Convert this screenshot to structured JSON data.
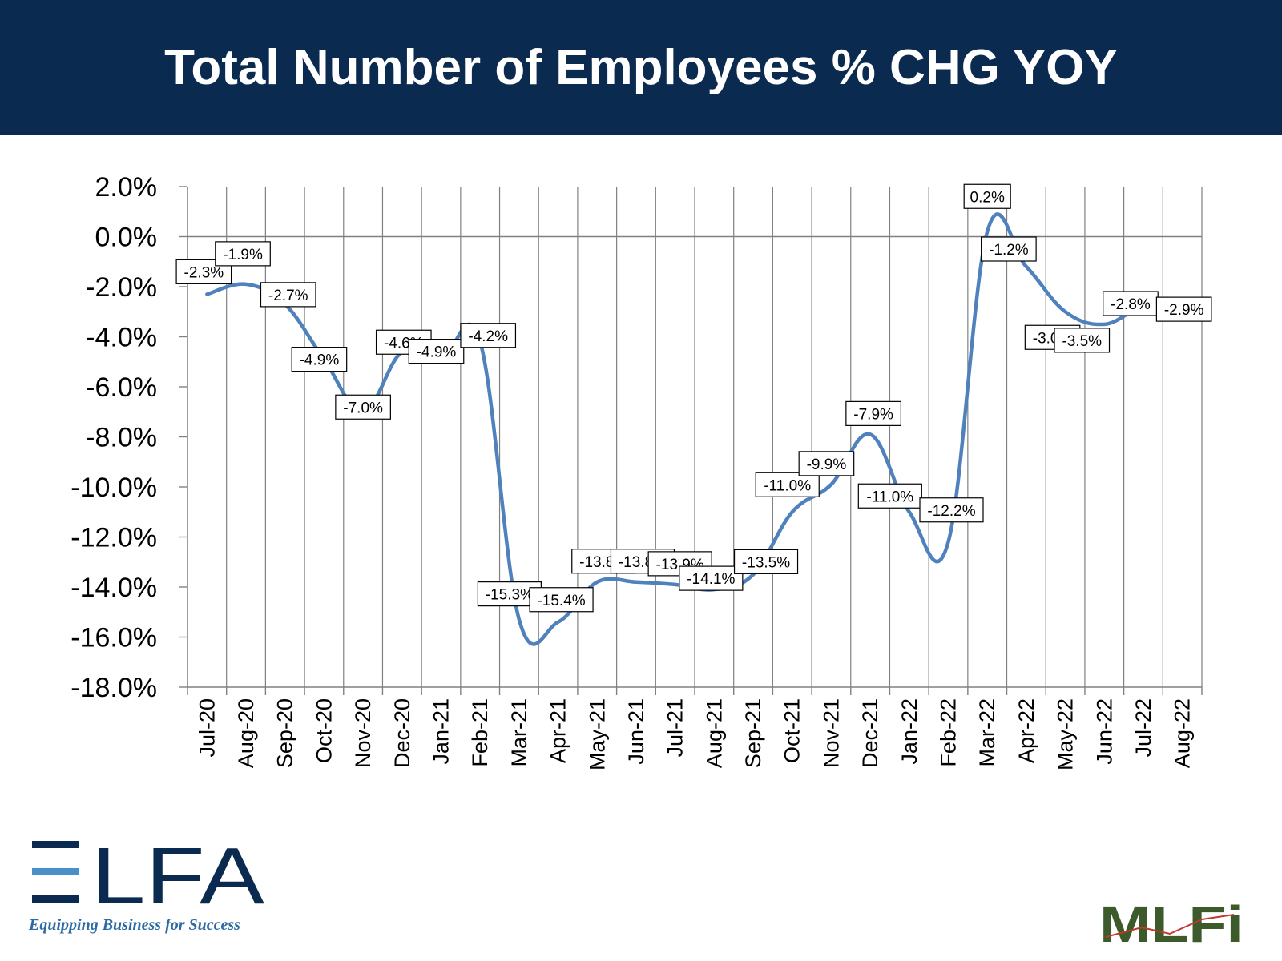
{
  "header": {
    "title": "Total Number of Employees % CHG YOY"
  },
  "logos": {
    "elfa": {
      "wordmark": "ELFA",
      "tagline": "Equipping Business for Success",
      "color": "#0b2a4f",
      "accent": "#4a90c8"
    },
    "mlfi": {
      "wordmark": "MLFi",
      "color": "#3d5a2a"
    }
  },
  "colors": {
    "header_bg": "#0b2a4f",
    "line": "#4f81bd",
    "grid": "#808080"
  },
  "chart_data": {
    "type": "line",
    "title": "",
    "xlabel": "",
    "ylabel": "",
    "ylim": [
      -18,
      2
    ],
    "ytick_step": 2,
    "y_format": "percent_1dp",
    "grid": "vertical-and-zero",
    "legend": "none",
    "categories": [
      "Jul-20",
      "Aug-20",
      "Sep-20",
      "Oct-20",
      "Nov-20",
      "Dec-20",
      "Jan-21",
      "Feb-21",
      "Mar-21",
      "Apr-21",
      "May-21",
      "Jun-21",
      "Jul-21",
      "Aug-21",
      "Sep-21",
      "Oct-21",
      "Nov-21",
      "Dec-21",
      "Jan-22",
      "Feb-22",
      "Mar-22",
      "Apr-22",
      "May-22",
      "Jun-22",
      "Jul-22",
      "Aug-22"
    ],
    "series": [
      {
        "values": [
          -2.3,
          -1.9,
          -2.7,
          -4.9,
          -7.0,
          -4.6,
          -4.9,
          -4.2,
          -15.3,
          -15.4,
          -13.8,
          -13.8,
          -13.9,
          -14.1,
          -13.5,
          -11.0,
          -9.9,
          -7.9,
          -11.0,
          -12.2,
          0.2,
          -1.2,
          -3.0,
          -3.5,
          -2.8,
          -2.9
        ],
        "data_labels": [
          "-2.3%",
          "-1.9%",
          "-2.7%",
          "-4.9%",
          "-7.0%",
          "-4.6%",
          "-4.9%",
          "-4.2%",
          "-15.3%",
          "-15.4%",
          "-13.8%",
          "-13.8%",
          "-13.9%",
          "-14.1%",
          "-13.5%",
          "-11.0%",
          "-9.9%",
          "-7.9%",
          "-11.0%",
          "-12.2%",
          "0.2%",
          "-1.2%",
          "-3.0%",
          "-3.5%",
          "-2.8%",
          "-2.9%"
        ]
      }
    ]
  }
}
